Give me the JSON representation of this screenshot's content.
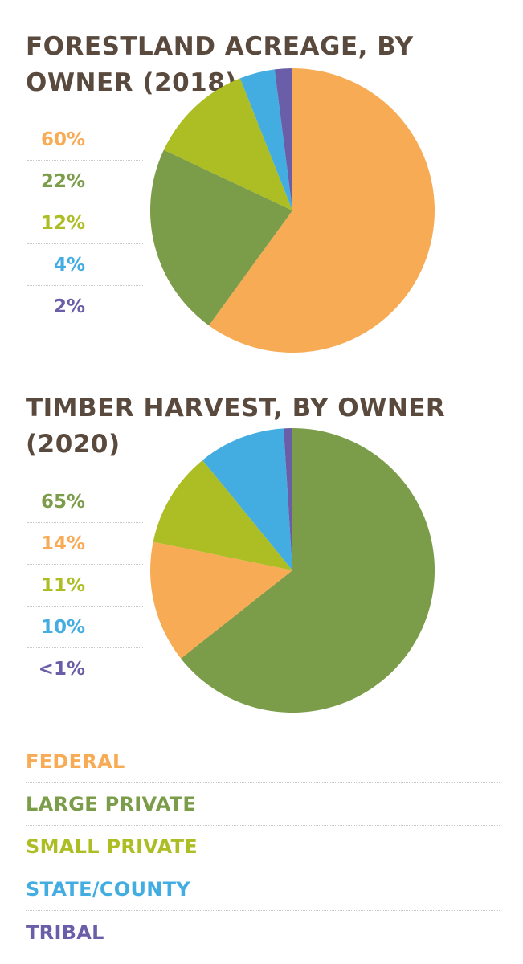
{
  "colors": {
    "federal": "#f8ab55",
    "large_private": "#7b9c48",
    "small_private": "#adbd24",
    "state_county": "#43ade2",
    "tribal": "#6a5ea8",
    "title": "#5a4a3e"
  },
  "chart_data": [
    {
      "type": "pie",
      "title": "FORESTLAND ACREAGE, BY OWNER (2018)",
      "slices": [
        {
          "label": "Federal",
          "value": 60,
          "display": "60%",
          "color_key": "federal"
        },
        {
          "label": "Large Private",
          "value": 22,
          "display": "22%",
          "color_key": "large_private"
        },
        {
          "label": "Small Private",
          "value": 12,
          "display": "12%",
          "color_key": "small_private"
        },
        {
          "label": "State/County",
          "value": 4,
          "display": "4%",
          "color_key": "state_county"
        },
        {
          "label": "Tribal",
          "value": 2,
          "display": "2%",
          "color_key": "tribal"
        }
      ]
    },
    {
      "type": "pie",
      "title": "TIMBER HARVEST, BY OWNER (2020)",
      "slices": [
        {
          "label": "Large Private",
          "value": 65,
          "display": "65%",
          "color_key": "large_private"
        },
        {
          "label": "Federal",
          "value": 14,
          "display": "14%",
          "color_key": "federal"
        },
        {
          "label": "Small Private",
          "value": 11,
          "display": "11%",
          "color_key": "small_private"
        },
        {
          "label": "State/County",
          "value": 10,
          "display": "10%",
          "color_key": "state_county"
        },
        {
          "label": "Tribal",
          "value": 1,
          "display": "<1%",
          "color_key": "tribal"
        }
      ]
    }
  ],
  "legend": [
    {
      "label": "FEDERAL",
      "color_key": "federal"
    },
    {
      "label": "LARGE PRIVATE",
      "color_key": "large_private"
    },
    {
      "label": "SMALL PRIVATE",
      "color_key": "small_private"
    },
    {
      "label": "STATE/COUNTY",
      "color_key": "state_county"
    },
    {
      "label": "TRIBAL",
      "color_key": "tribal"
    }
  ]
}
